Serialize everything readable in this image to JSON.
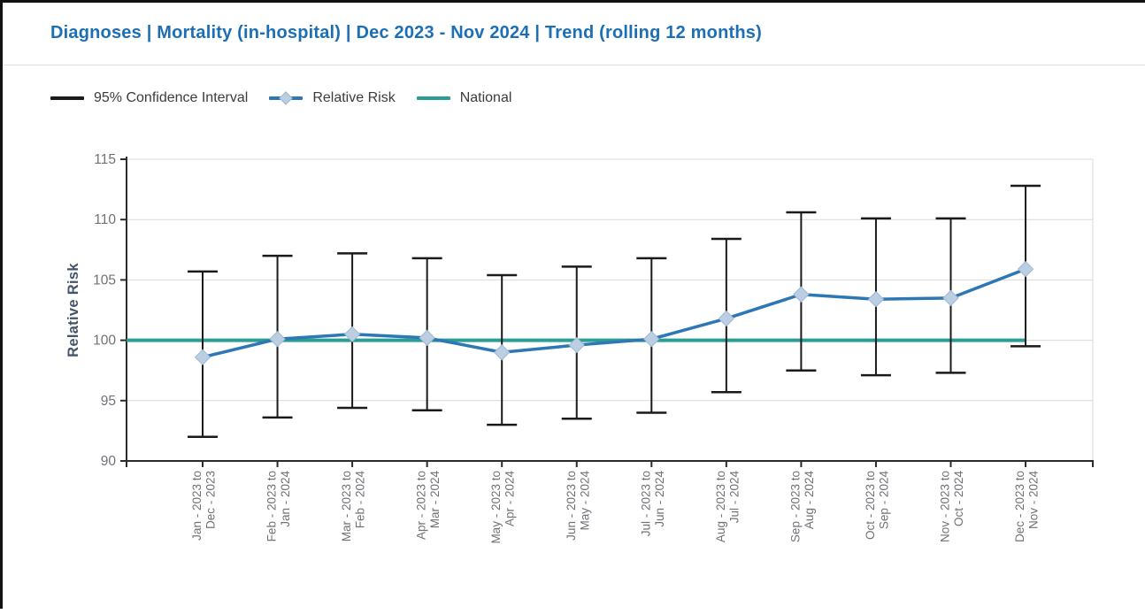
{
  "header": {
    "title": "Diagnoses | Mortality (in-hospital) | Dec 2023 - Nov 2024 | Trend (rolling 12 months)"
  },
  "legend": [
    {
      "label": "95% Confidence Interval",
      "swatch": "line",
      "color": "#1A1A1A"
    },
    {
      "label": "Relative Risk",
      "swatch": "line-diamond",
      "color": "#2D77B4",
      "marker_color": "#BCCEE2",
      "marker_border": "#9DB8D4"
    },
    {
      "label": "National",
      "swatch": "line",
      "color": "#2A9D95"
    }
  ],
  "colors": {
    "title": "#1D6FB5",
    "axis": "#2B2B2B",
    "grid": "#D9D9D9",
    "tick_label": "#6F7276",
    "axis_title": "#44546A",
    "ci_bar": "#1A1A1A",
    "rr_line": "#2D77B4",
    "rr_marker_fill": "#BCCEE2",
    "rr_marker_border": "#9DB8D4",
    "national_line": "#2A9D95"
  },
  "chart_data": {
    "type": "line",
    "title": "Diagnoses | Mortality (in-hospital) | Dec 2023 - Nov 2024 | Trend (rolling 12 months)",
    "xlabel": "",
    "ylabel": "Relative Risk",
    "ylim": [
      90,
      115
    ],
    "yticks": [
      90,
      95,
      100,
      105,
      110,
      115
    ],
    "grid": true,
    "legend_position": "top",
    "categories": [
      [
        "Jan - 2023 to",
        "Dec - 2023"
      ],
      [
        "Feb - 2023 to",
        "Jan - 2024"
      ],
      [
        "Mar - 2023 to",
        "Feb - 2024"
      ],
      [
        "Apr - 2023 to",
        "Mar - 2024"
      ],
      [
        "May - 2023 to",
        "Apr - 2024"
      ],
      [
        "Jun - 2023 to",
        "May - 2024"
      ],
      [
        "Jul - 2023 to",
        "Jun - 2024"
      ],
      [
        "Aug - 2023 to",
        "Jul - 2024"
      ],
      [
        "Sep - 2023 to",
        "Aug - 2024"
      ],
      [
        "Oct - 2023 to",
        "Sep - 2024"
      ],
      [
        "Nov - 2023 to",
        "Oct - 2024"
      ],
      [
        "Dec - 2023 to",
        "Nov - 2024"
      ]
    ],
    "series": [
      {
        "name": "Relative Risk",
        "style": "line-diamond",
        "values": [
          98.6,
          100.1,
          100.5,
          100.2,
          99.0,
          99.6,
          100.1,
          101.8,
          103.8,
          103.4,
          103.5,
          105.9
        ]
      },
      {
        "name": "95% Confidence Interval",
        "style": "errorbar",
        "lower": [
          92.0,
          93.6,
          94.4,
          94.2,
          93.0,
          93.5,
          94.0,
          95.7,
          97.5,
          97.1,
          97.3,
          99.5
        ],
        "upper": [
          105.7,
          107.0,
          107.2,
          106.8,
          105.4,
          106.1,
          106.8,
          108.4,
          110.6,
          110.1,
          110.1,
          112.8
        ]
      },
      {
        "name": "National",
        "style": "hline",
        "value": 100
      }
    ]
  }
}
